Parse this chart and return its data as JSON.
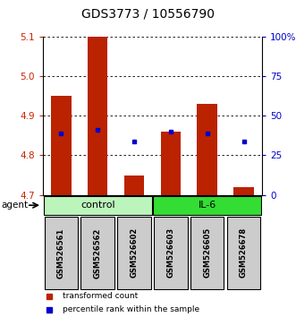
{
  "title": "GDS3773 / 10556790",
  "samples": [
    "GSM526561",
    "GSM526562",
    "GSM526602",
    "GSM526603",
    "GSM526605",
    "GSM526678"
  ],
  "groups": [
    "control",
    "control",
    "control",
    "IL-6",
    "IL-6",
    "IL-6"
  ],
  "bar_bottoms": [
    4.7,
    4.7,
    4.7,
    4.7,
    4.7,
    4.7
  ],
  "bar_tops": [
    4.95,
    5.1,
    4.75,
    4.86,
    4.93,
    4.72
  ],
  "percentile_values": [
    4.855,
    4.865,
    4.835,
    4.86,
    4.855,
    4.835
  ],
  "ylim": [
    4.7,
    5.1
  ],
  "yticks_left": [
    4.7,
    4.8,
    4.9,
    5.0,
    5.1
  ],
  "yticks_right": [
    0,
    25,
    50,
    75,
    100
  ],
  "yticks_right_labels": [
    "0",
    "25",
    "50",
    "75",
    "100%"
  ],
  "bar_color": "#bb2200",
  "dot_color": "#0000cc",
  "left_tick_color": "#cc2200",
  "right_tick_color": "#0000cc",
  "title_fontsize": 10,
  "group_control_color": "#bbf5bb",
  "group_il6_color": "#33dd33",
  "agent_label": "agent",
  "legend_tc": "transformed count",
  "legend_pr": "percentile rank within the sample",
  "bar_width": 0.55,
  "sample_box_color": "#cccccc"
}
